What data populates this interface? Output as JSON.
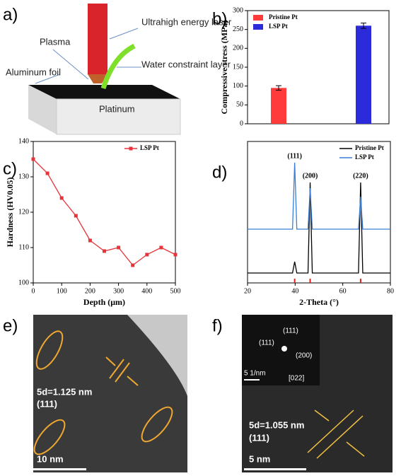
{
  "panels": {
    "a": {
      "label": "a)",
      "laser": "Ultrahigh energy laser",
      "plasma": "Plasma",
      "water": "Water constraint layer",
      "foil": "Aluminum foil",
      "substrate": "Platinum"
    },
    "e": {
      "label": "e)",
      "spacing": "5d=1.125 nm",
      "plane": "(111)",
      "scale": "10 nm"
    },
    "f": {
      "label": "f)",
      "spot1": "(111)",
      "spot2": "(111)",
      "spot3": "(200)",
      "inset_scale": "5 1/nm",
      "zone": "[022]",
      "spacing": "5d=1.055 nm",
      "plane": "(111)",
      "scale": "5 nm"
    }
  },
  "chart_data": [
    {
      "type": "bar",
      "panel_label": "b)",
      "y_label": "Compressive stress (MPa)",
      "series": [
        {
          "name": "Pristine Pt",
          "color": "#ff3b3b",
          "values": [
            95
          ],
          "errors": [
            6
          ]
        },
        {
          "name": "LSP Pt",
          "color": "#2b2bdc",
          "values": [
            260
          ],
          "errors": [
            7
          ]
        }
      ],
      "ylim": [
        0,
        300
      ],
      "yticks": [
        0,
        50,
        100,
        150,
        200,
        250,
        300
      ],
      "legend": "upper left"
    },
    {
      "type": "line",
      "panel_label": "c)",
      "x_label": "Depth (μm)",
      "y_label": "Hardness (HV0.05)",
      "x": [
        0,
        50,
        100,
        150,
        200,
        250,
        300,
        350,
        400,
        450,
        500
      ],
      "series": [
        {
          "name": "LSP Pt",
          "color": "#e8333a",
          "values": [
            135,
            131,
            124,
            119,
            112,
            109,
            110,
            105,
            108,
            110,
            108
          ]
        }
      ],
      "xlim": [
        0,
        500
      ],
      "xticks": [
        0,
        100,
        200,
        300,
        400,
        500
      ],
      "ylim": [
        100,
        140
      ],
      "yticks": [
        100,
        110,
        120,
        130,
        140
      ],
      "legend": "upper right",
      "markers": true
    },
    {
      "type": "line",
      "panel_label": "d)",
      "x_label": "2-Theta (°)",
      "x": [
        20,
        38.9,
        39.8,
        40.7,
        45.4,
        46.3,
        47.2,
        66.6,
        67.5,
        68.4,
        80
      ],
      "series": [
        {
          "name": "Pristine Pt",
          "color": "#000000",
          "values": [
            7,
            7,
            15,
            7,
            7,
            71,
            7,
            7,
            71,
            7,
            7
          ]
        },
        {
          "name": "LSP Pt",
          "color": "#3a7fd5",
          "values": [
            38,
            38,
            85,
            38,
            38,
            67,
            38,
            38,
            61,
            38,
            38
          ]
        }
      ],
      "xlim": [
        20,
        80
      ],
      "xticks": [
        20,
        40,
        60,
        80
      ],
      "ylim": [
        0,
        100
      ],
      "legend": "upper right",
      "markers": false,
      "annotations": [
        {
          "text": "(111)",
          "x": 39.8
        },
        {
          "text": "(200)",
          "x": 46.3
        },
        {
          "text": "(220)",
          "x": 67.5
        }
      ],
      "reference_peaks": {
        "color": "#e02020",
        "x": [
          39.8,
          46.3,
          67.5
        ]
      }
    }
  ]
}
